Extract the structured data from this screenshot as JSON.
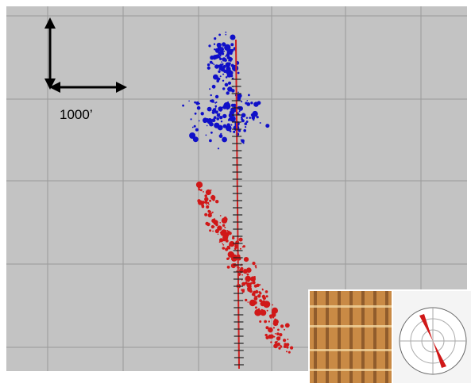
{
  "scale_label": "1000’"
}
